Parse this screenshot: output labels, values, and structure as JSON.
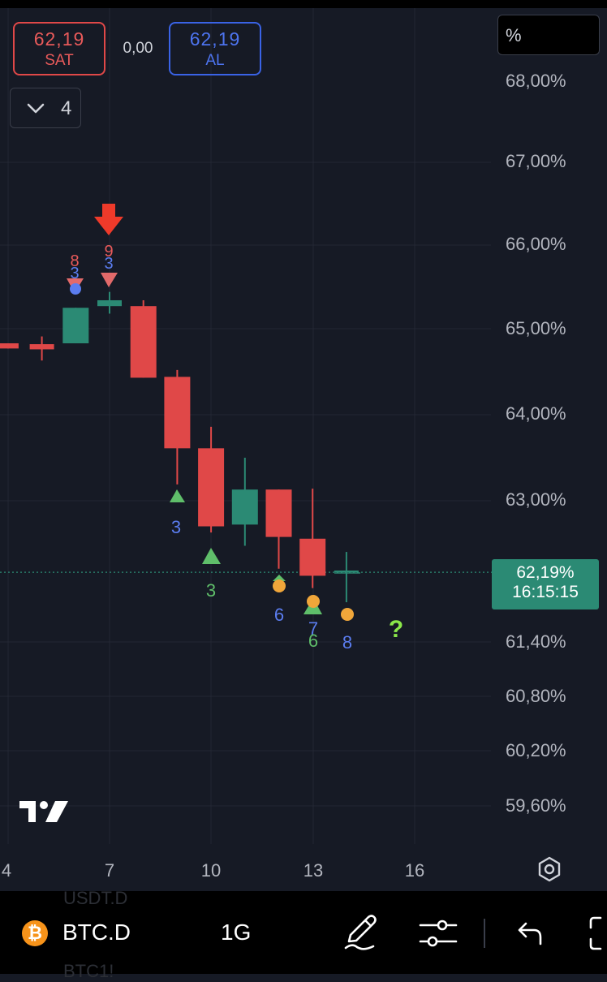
{
  "trade": {
    "sell_price": "62,19",
    "sell_label": "SAT",
    "spread": "0,00",
    "buy_price": "62,19",
    "buy_label": "AL"
  },
  "indicator_toggle": {
    "count": "4",
    "icon": "chevron-down-icon"
  },
  "scale_button": {
    "label": "%"
  },
  "price_axis": {
    "ticks": [
      "68,00%",
      "67,00%",
      "66,00%",
      "65,00%",
      "64,00%",
      "63,00%",
      "61,40%",
      "60,80%",
      "60,20%",
      "59,60%"
    ],
    "last_price": "62,19%",
    "countdown": "16:15:15"
  },
  "time_axis": {
    "labels": [
      "4",
      "7",
      "10",
      "13",
      "16"
    ]
  },
  "colors": {
    "background": "#161a25",
    "up": "#2b8a74",
    "down": "#e04848",
    "signal_arrow": "#ee3a2a",
    "marker_green": "#5fbe6a",
    "marker_orange": "#f0a63a",
    "marker_blue": "#5b7df0",
    "question": "#8be84a"
  },
  "chart_data": {
    "type": "candlestick",
    "x": [
      "4",
      "5",
      "6",
      "7",
      "8",
      "9",
      "10",
      "11",
      "12",
      "13",
      "14"
    ],
    "series": [
      {
        "open": [
          64.83,
          64.82,
          64.83,
          65.27,
          65.27,
          64.44,
          63.61,
          62.73,
          63.13,
          62.57,
          62.2
        ],
        "close": [
          64.77,
          64.76,
          65.25,
          65.34,
          64.43,
          63.61,
          62.71,
          63.13,
          62.59,
          62.15,
          62.2
        ],
        "high": [
          64.83,
          64.91,
          65.25,
          65.44,
          65.34,
          64.52,
          63.86,
          63.5,
          63.13,
          63.14,
          62.42
        ],
        "low": [
          64.77,
          64.63,
          64.83,
          65.18,
          64.43,
          63.19,
          62.64,
          62.49,
          62.23,
          62.01,
          61.85
        ]
      }
    ],
    "last_value": 62.19,
    "annotations": [
      {
        "x": "6",
        "text": "8",
        "color": "#e85a5a"
      },
      {
        "x": "6",
        "text": "3",
        "color": "#5b7df0"
      },
      {
        "x": "7",
        "text": "9",
        "color": "#e85a5a"
      },
      {
        "x": "7",
        "text": "3",
        "color": "#5b7df0"
      },
      {
        "x": "9",
        "text": "3",
        "color": "#5b7df0"
      },
      {
        "x": "10",
        "text": "3",
        "color": "#5fbe6a"
      },
      {
        "x": "12",
        "text": "6",
        "color": "#5b7df0"
      },
      {
        "x": "13",
        "text": "7",
        "color": "#5b7df0"
      },
      {
        "x": "13",
        "text": "6",
        "color": "#5fbe6a"
      },
      {
        "x": "14",
        "text": "8",
        "color": "#5b7df0"
      },
      {
        "x": "15",
        "text": "?",
        "color": "#8be84a"
      }
    ],
    "grid": true,
    "y_scale": "percent"
  },
  "symbol_bar": {
    "coin_glyph": "₿",
    "symbol": "BTC.D",
    "timeframe": "1G",
    "ghost_above": "USDT.D",
    "ghost_below": "BTC1!"
  }
}
